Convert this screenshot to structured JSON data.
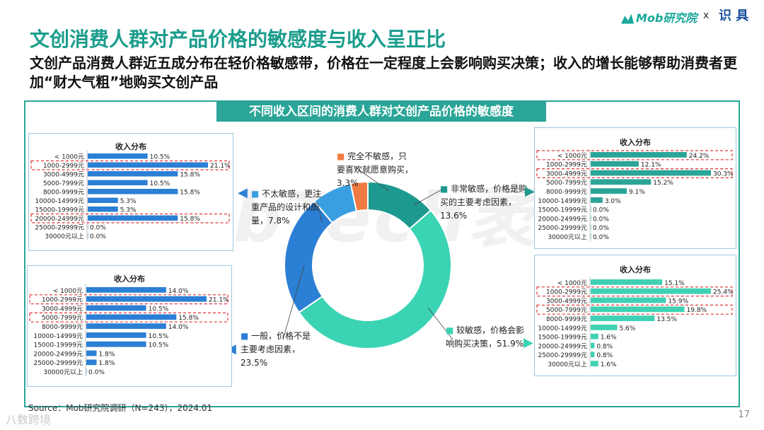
{
  "header": {
    "title": "文创消费人群对产品价格的敏感度与收入呈正比",
    "subtitle": "文创产品消费人群近五成分布在轻价格敏感带，价格在一定程度上会影响购买决策；收入的增长能够帮助消费者更加“财大气粗”地购买文创产品",
    "brand_left": "Mob研究院",
    "brand_x": "x",
    "brand_right": "识 具"
  },
  "banner": "不同收入区间的消费人群对文创产品价格的敏感度",
  "watermark": "MobTech袤博",
  "colors": {
    "accent": "#2aa597",
    "blue": "#2b7fd4",
    "green": "#3fd1b3",
    "highlight": "#e0353a"
  },
  "chart_data": [
    {
      "type": "pie",
      "title": "",
      "slices": [
        {
          "name": "非常敏感，价格是购买的主要考虑因素，",
          "value": 13.6,
          "label": "13.6%",
          "color": "#1e9990"
        },
        {
          "name": "较敏感，价格会影响购买决策，",
          "value": 51.9,
          "label": "51.9%",
          "color": "#3ad3b3"
        },
        {
          "name": "一般，价格不是主要考虑因素，",
          "value": 23.5,
          "label": "23.5%",
          "color": "#2b7fd4"
        },
        {
          "name": "不太敏感，更注重产品的设计和质量，",
          "value": 7.8,
          "label": "7.8%",
          "color": "#3a9fe0"
        },
        {
          "name": "完全不敏感，只要喜欢就愿意购买，",
          "value": 3.3,
          "label": "3.3%",
          "color": "#f07b42"
        }
      ]
    },
    {
      "type": "bar",
      "title": "收入分布",
      "panel": "not-very-sensitive",
      "categories": [
        "< 1000元",
        "1000-2999元",
        "3000-4999元",
        "5000-7999元",
        "8000-9999元",
        "10000-14999元",
        "15000-19999元",
        "20000-24999元",
        "25000-29999元",
        "30000元以上"
      ],
      "values": [
        10.5,
        21.1,
        15.8,
        10.5,
        15.8,
        5.3,
        5.3,
        15.8,
        0.0,
        0.0
      ],
      "labels": [
        "10.5%",
        "21.1%",
        "15.8%",
        "10.5%",
        "15.8%",
        "5.3%",
        "5.3%",
        "15.8%",
        "0.0%",
        "0.0%"
      ],
      "highlight": [
        1,
        7
      ]
    },
    {
      "type": "bar",
      "title": "收入分布",
      "panel": "general",
      "categories": [
        "< 1000元",
        "1000-2999元",
        "3000-4999元",
        "5000-7999元",
        "8000-9999元",
        "10000-14999元",
        "15000-19999元",
        "20000-24999元",
        "25000-29999元",
        "30000元以上"
      ],
      "values": [
        14.0,
        21.1,
        10.5,
        15.8,
        14.0,
        10.5,
        10.5,
        1.8,
        1.8,
        0.0
      ],
      "labels": [
        "14.0%",
        "21.1%",
        "10.5%",
        "15.8%",
        "14.0%",
        "10.5%",
        "10.5%",
        "1.8%",
        "1.8%",
        "0.0%"
      ],
      "highlight": [
        1,
        3
      ]
    },
    {
      "type": "bar",
      "title": "收入分布",
      "panel": "very-sensitive",
      "categories": [
        "< 1000元",
        "1000-2999元",
        "3000-4999元",
        "5000-7999元",
        "8000-9999元",
        "10000-14999元",
        "15000-19999元",
        "20000-24999元",
        "25000-29999元",
        "30000元以上"
      ],
      "values": [
        24.2,
        12.1,
        30.3,
        15.2,
        9.1,
        3.0,
        0.0,
        0.0,
        0.0,
        0.0
      ],
      "labels": [
        "24.2%",
        "12.1%",
        "30.3%",
        "15.2%",
        "9.1%",
        "3.0%",
        "0.0%",
        "0.0%",
        "0.0%",
        "0.0%"
      ],
      "highlight": [
        0,
        2
      ]
    },
    {
      "type": "bar",
      "title": "收入分布",
      "panel": "sensitive",
      "categories": [
        "< 1000元",
        "1000-2999元",
        "3000-4999元",
        "5000-7999元",
        "8000-9999元",
        "10000-14999元",
        "15000-19999元",
        "20000-24999元",
        "25000-29999元",
        "30000元以上"
      ],
      "values": [
        15.1,
        25.4,
        15.9,
        19.8,
        13.5,
        5.6,
        1.6,
        0.8,
        0.8,
        1.6
      ],
      "labels": [
        "15.1%",
        "25.4%",
        "15.9%",
        "19.8%",
        "13.5%",
        "5.6%",
        "1.6%",
        "0.8%",
        "0.8%",
        "1.6%"
      ],
      "highlight": [
        1,
        3
      ]
    }
  ],
  "source": "Source：Mob研究院调研（N=243），2024.01",
  "page_number": "17",
  "footer_brand": "八数跨境"
}
